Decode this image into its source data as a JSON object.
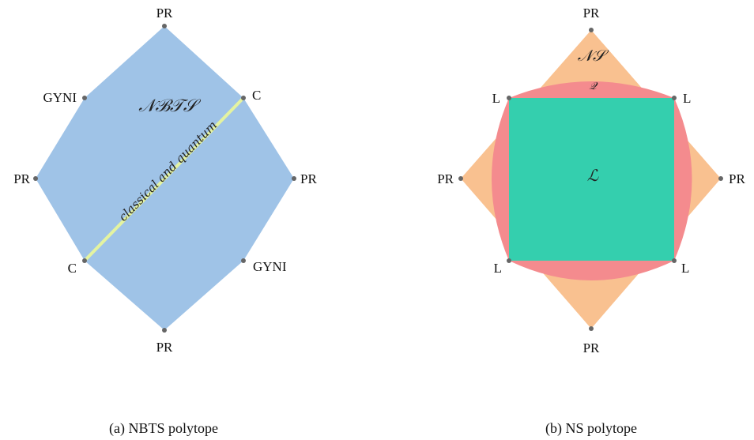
{
  "panel_a": {
    "region_label": "𝒩ℬ𝒯𝒮",
    "diagonal_label": "classical and quantum",
    "caption": "(a) NBTS polytope",
    "vertex_labels": {
      "top": "PR",
      "upper_left": "GYNI",
      "upper_right": "C",
      "left": "PR",
      "right": "PR",
      "lower_left": "C",
      "lower_right": "GYNI",
      "bottom": "PR"
    },
    "colors": {
      "fill": "#9fc3e7",
      "diagonal": "#e4f3a0",
      "vertex": "#666666"
    }
  },
  "panel_b": {
    "outer_label": "𝒩𝒮",
    "middle_label": "𝒬",
    "inner_label": "ℒ",
    "caption": "(b) NS polytope",
    "vertex_labels": {
      "top": "PR",
      "left": "PR",
      "right": "PR",
      "bottom": "PR",
      "top_left": "L",
      "top_right": "L",
      "bottom_left": "L",
      "bottom_right": "L"
    },
    "colors": {
      "ns": "#f9c190",
      "quantum": "#f48b8e",
      "local": "#34cfae",
      "vertex": "#666666"
    }
  }
}
